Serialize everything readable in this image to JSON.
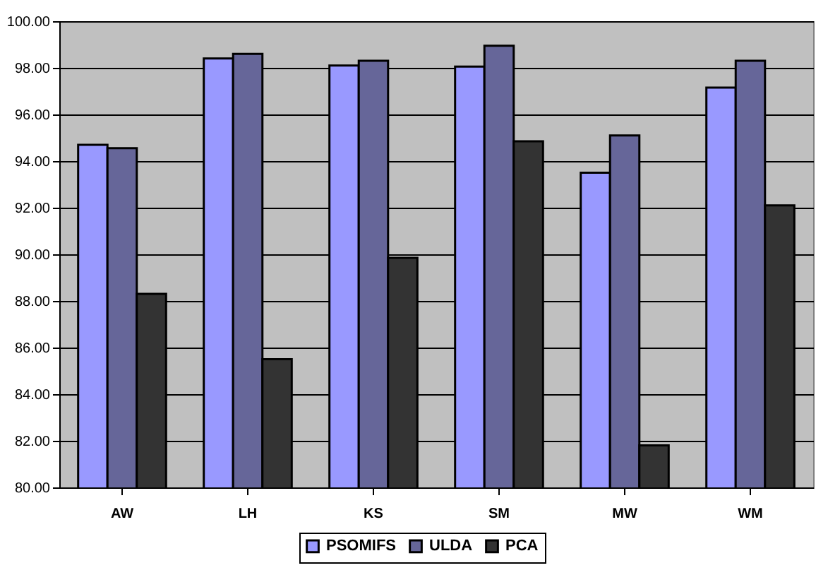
{
  "chart_data": {
    "type": "bar",
    "categories": [
      "AW",
      "LH",
      "KS",
      "SM",
      "MW",
      "WM"
    ],
    "series": [
      {
        "name": "PSOMIFS",
        "color": "#9999ff",
        "values": [
          94.7,
          98.4,
          98.1,
          98.05,
          93.5,
          97.15
        ]
      },
      {
        "name": "ULDA",
        "color": "#666699",
        "values": [
          94.55,
          98.6,
          98.3,
          98.95,
          95.1,
          98.3
        ]
      },
      {
        "name": "PCA",
        "color": "#333333",
        "values": [
          88.3,
          85.5,
          89.85,
          94.85,
          81.8,
          92.1
        ]
      }
    ],
    "ylim": [
      80,
      100
    ],
    "yticks": [
      {
        "value": 80,
        "label": "80.00"
      },
      {
        "value": 82,
        "label": "82.00"
      },
      {
        "value": 84,
        "label": "84.00"
      },
      {
        "value": 86,
        "label": "86.00"
      },
      {
        "value": 88,
        "label": "88.00"
      },
      {
        "value": 90,
        "label": "90.00"
      },
      {
        "value": 92,
        "label": "92.00"
      },
      {
        "value": 94,
        "label": "94.00"
      },
      {
        "value": 96,
        "label": "96.00"
      },
      {
        "value": 98,
        "label": "98.00"
      },
      {
        "value": 100,
        "label": "100.00"
      }
    ],
    "grid": "y",
    "legend": "bottom"
  }
}
